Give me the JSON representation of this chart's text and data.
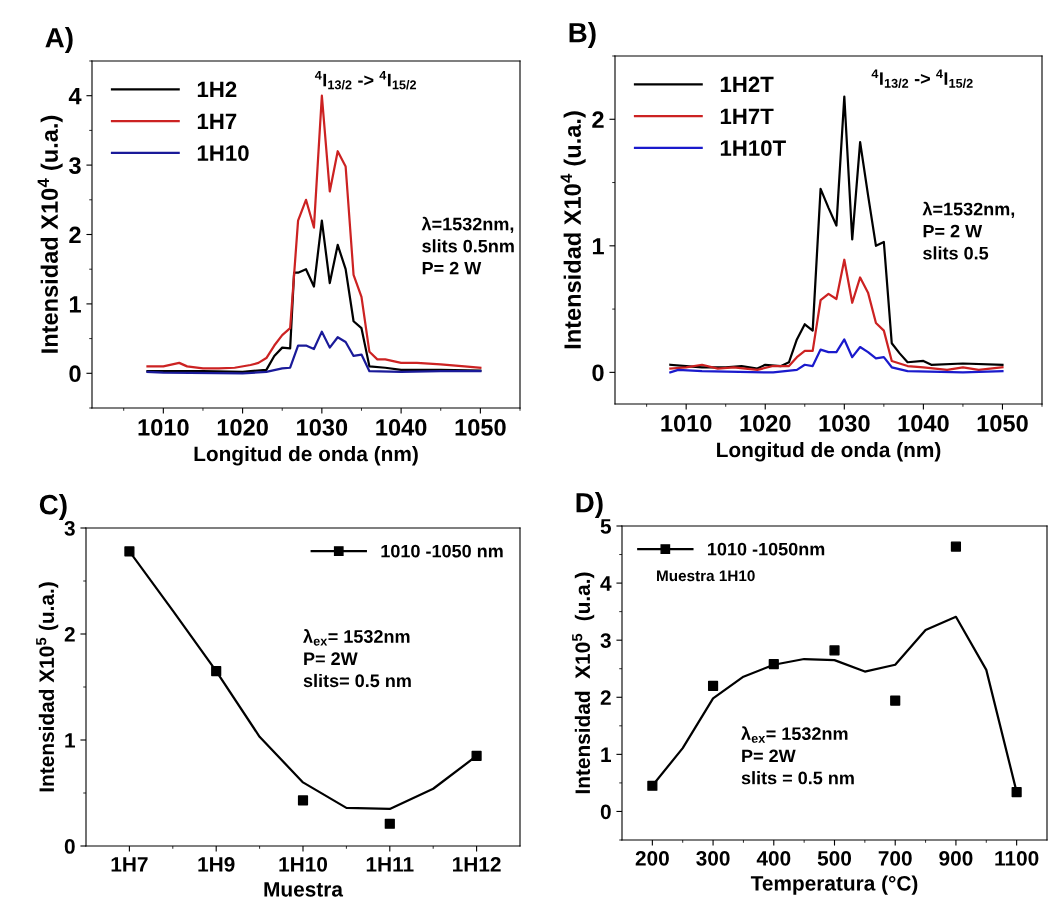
{
  "chart_data": [
    {
      "type": "line",
      "title": "A)",
      "xlabel": "Longitud de onda (nm)",
      "ylabel": "Intensidad X10$^{4}$ (u.a.)",
      "xlim": [
        1001,
        1055
      ],
      "xticks": [
        1010,
        1020,
        1030,
        1040,
        1050
      ],
      "ylim": [
        -0.5,
        4.5
      ],
      "yticks": [
        0,
        1,
        2,
        3,
        4
      ],
      "grid": false,
      "legend": "top left",
      "marker": "none",
      "line_style": "solid",
      "annotations": [
        "$^{4}$I$_{13/2}$ -> $^{4}$I$_{15/2}$",
        "λ=1532nm,\nslits 0.5nm\nP= 2 W"
      ],
      "series": [
        {
          "name": "1H2",
          "color": "#000000",
          "x": [
            1008,
            1015,
            1020,
            1023,
            1024,
            1025,
            1026,
            1026.5,
            1027,
            1028,
            1029,
            1030,
            1031,
            1032,
            1033,
            1034,
            1035,
            1036,
            1038,
            1040,
            1045,
            1050
          ],
          "values": [
            0.03,
            0.03,
            0.02,
            0.05,
            0.25,
            0.37,
            0.36,
            1.45,
            1.45,
            1.5,
            1.25,
            2.2,
            1.3,
            1.85,
            1.5,
            0.75,
            0.65,
            0.1,
            0.08,
            0.05,
            0.05,
            0.04
          ]
        },
        {
          "name": "1H7",
          "color": "#cc2222",
          "x": [
            1008,
            1010,
            1012,
            1013,
            1015,
            1017,
            1019,
            1021,
            1022,
            1023,
            1024,
            1025,
            1026,
            1027,
            1028,
            1029,
            1030,
            1031,
            1032,
            1033,
            1034,
            1035,
            1036,
            1037,
            1038,
            1040,
            1042,
            1045,
            1048,
            1050
          ],
          "values": [
            0.1,
            0.1,
            0.15,
            0.1,
            0.07,
            0.07,
            0.08,
            0.12,
            0.15,
            0.22,
            0.4,
            0.55,
            0.65,
            2.2,
            2.5,
            2.1,
            4.0,
            2.62,
            3.2,
            2.98,
            1.42,
            1.1,
            0.31,
            0.2,
            0.2,
            0.15,
            0.15,
            0.13,
            0.1,
            0.08
          ]
        },
        {
          "name": "1H10",
          "color": "#1a1a99",
          "x": [
            1008,
            1010,
            1020,
            1023,
            1025,
            1026,
            1027,
            1028,
            1029,
            1030,
            1031,
            1032,
            1033,
            1034,
            1035,
            1036,
            1040,
            1045,
            1050
          ],
          "values": [
            0.02,
            0.01,
            0.0,
            0.02,
            0.07,
            0.08,
            0.4,
            0.4,
            0.35,
            0.6,
            0.37,
            0.52,
            0.45,
            0.25,
            0.27,
            0.03,
            0.02,
            0.03,
            0.03
          ]
        }
      ]
    },
    {
      "type": "line",
      "title": "B)",
      "xlabel": "Longitud de onda (nm)",
      "ylabel": "Intensidad X10$^{4}$ (u.a.)",
      "xlim": [
        1001,
        1055
      ],
      "xticks": [
        1010,
        1020,
        1030,
        1040,
        1050
      ],
      "ylim": [
        -0.25,
        2.5
      ],
      "yticks": [
        0,
        1,
        2
      ],
      "grid": false,
      "legend": "top left",
      "marker": "none",
      "line_style": "solid",
      "annotations": [
        "$^{4}$I$_{13/2}$ -> $^{4}$I$_{15/2}$",
        "λ=1532nm,\nP= 2 W\nslits 0.5"
      ],
      "series": [
        {
          "name": "1H2T",
          "color": "#000000",
          "x": [
            1008,
            1010,
            1012,
            1015,
            1017,
            1019,
            1020,
            1022,
            1023,
            1024,
            1025,
            1026,
            1027,
            1028,
            1029,
            1030,
            1031,
            1032,
            1033,
            1034,
            1035,
            1036,
            1037,
            1038,
            1040,
            1041,
            1045,
            1050
          ],
          "values": [
            0.06,
            0.05,
            0.04,
            0.04,
            0.05,
            0.03,
            0.06,
            0.05,
            0.08,
            0.26,
            0.38,
            0.33,
            1.45,
            1.3,
            1.16,
            2.18,
            1.05,
            1.82,
            1.4,
            1.0,
            1.03,
            0.23,
            0.15,
            0.08,
            0.09,
            0.06,
            0.07,
            0.06
          ]
        },
        {
          "name": "1H7T",
          "color": "#cc2222",
          "x": [
            1008,
            1010,
            1012,
            1014,
            1016,
            1019,
            1021,
            1023,
            1024,
            1025,
            1026,
            1027,
            1028,
            1029,
            1030,
            1031,
            1032,
            1033,
            1034,
            1035,
            1036,
            1038,
            1040,
            1043,
            1045,
            1047,
            1050
          ],
          "values": [
            0.03,
            0.04,
            0.06,
            0.03,
            0.04,
            0.02,
            0.05,
            0.05,
            0.12,
            0.17,
            0.17,
            0.57,
            0.62,
            0.58,
            0.89,
            0.55,
            0.75,
            0.63,
            0.39,
            0.33,
            0.09,
            0.05,
            0.04,
            0.02,
            0.04,
            0.02,
            0.04
          ]
        },
        {
          "name": "1H10T",
          "color": "#1a1acc",
          "x": [
            1008,
            1009,
            1012,
            1020,
            1021,
            1024,
            1025,
            1026,
            1027,
            1028,
            1029,
            1030,
            1031,
            1032,
            1033,
            1034,
            1035,
            1036,
            1038,
            1045,
            1050
          ],
          "values": [
            0.0,
            0.02,
            0.01,
            0.0,
            0.0,
            0.02,
            0.06,
            0.05,
            0.18,
            0.16,
            0.16,
            0.26,
            0.12,
            0.2,
            0.16,
            0.11,
            0.12,
            0.04,
            0.01,
            0.0,
            0.01
          ]
        }
      ]
    },
    {
      "type": "scatter",
      "title": "C)",
      "xlabel": "Muestra",
      "ylabel": "Intensidad X10$^{5}$ (u.a.)",
      "categories": [
        "1H7",
        null,
        "1H9",
        null,
        "1H10",
        null,
        "1H11",
        null,
        "1H12"
      ],
      "ylim": [
        0,
        3
      ],
      "yticks": [
        0,
        1,
        2,
        3
      ],
      "grid": false,
      "legend": "top right",
      "marker": "square",
      "annotations": [
        "λ$_{ex}$= 1532nm\nP= 2W\nslits= 0.5 nm"
      ],
      "series": [
        {
          "name": "1010 -1050 nm",
          "color": "#000000",
          "type": "scatter",
          "values": [
            2.78,
            null,
            1.65,
            null,
            0.43,
            null,
            0.21,
            null,
            0.85
          ]
        },
        {
          "color": "#000000",
          "type": "line",
          "marker": "none",
          "values": [
            2.78,
            2.22,
            1.65,
            1.03,
            0.6,
            0.36,
            0.35,
            0.54,
            0.85
          ]
        }
      ]
    },
    {
      "type": "scatter",
      "title": "D)",
      "xlabel": "Temperatura (°C)",
      "ylabel": "Intensidad  X10$^{5}$  (u.a.)",
      "categories": [
        "200",
        null,
        "300",
        null,
        "400",
        null,
        "500",
        null,
        "700",
        null,
        "900",
        null,
        "1100"
      ],
      "ylim": [
        -0.5,
        5
      ],
      "yticks": [
        0,
        1,
        2,
        3,
        4,
        5
      ],
      "grid": false,
      "legend": "top left",
      "marker": "square",
      "annotations": [
        "Muestra 1H10",
        "λ$_{ex}$= 1532nm\nP= 2W\nslits = 0.5 nm"
      ],
      "series": [
        {
          "name": "1010 -1050nm",
          "color": "#000000",
          "type": "scatter",
          "values": [
            0.45,
            null,
            2.2,
            null,
            2.58,
            null,
            2.82,
            null,
            1.94,
            null,
            4.64,
            null,
            0.34
          ]
        },
        {
          "color": "#000000",
          "type": "line",
          "marker": "none",
          "values": [
            0.45,
            1.11,
            1.98,
            2.36,
            2.57,
            2.67,
            2.65,
            2.45,
            2.57,
            3.18,
            3.41,
            2.48,
            0.34
          ]
        }
      ]
    }
  ]
}
